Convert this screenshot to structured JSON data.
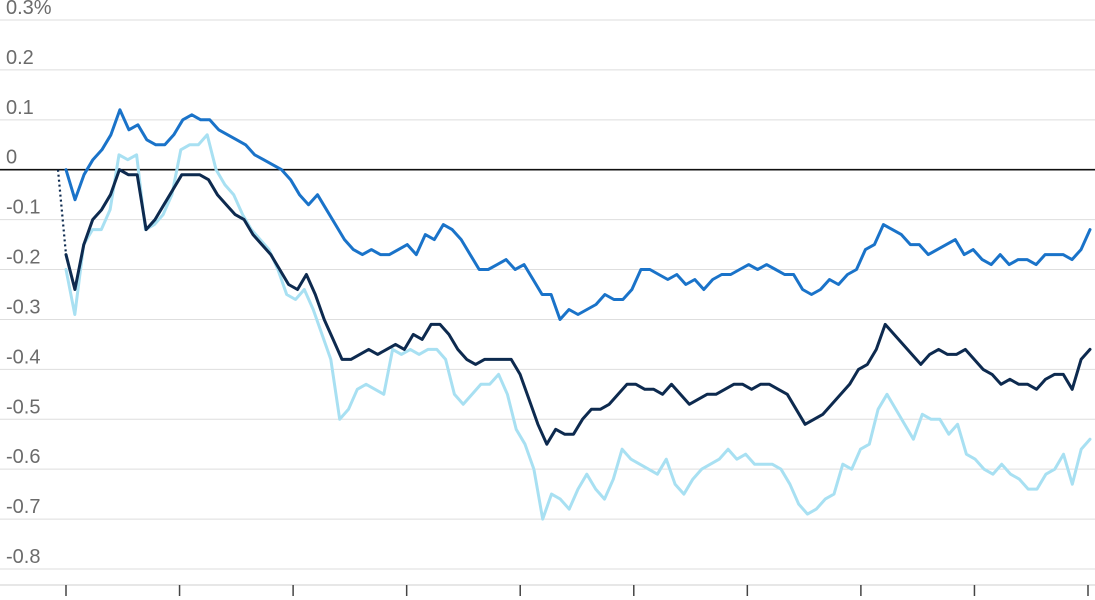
{
  "chart_data": {
    "type": "line",
    "title": "",
    "xlabel": "",
    "ylabel": "",
    "ylim": [
      -0.8,
      0.3
    ],
    "y_ticks": [
      {
        "value": 0.3,
        "label": "0.3%"
      },
      {
        "value": 0.2,
        "label": "0.2"
      },
      {
        "value": 0.1,
        "label": "0.1"
      },
      {
        "value": 0,
        "label": "0"
      },
      {
        "value": -0.1,
        "label": "-0.1"
      },
      {
        "value": -0.2,
        "label": "-0.2"
      },
      {
        "value": -0.3,
        "label": "-0.3"
      },
      {
        "value": -0.4,
        "label": "-0.4"
      },
      {
        "value": -0.5,
        "label": "-0.5"
      },
      {
        "value": -0.6,
        "label": "-0.6"
      },
      {
        "value": -0.7,
        "label": "-0.7"
      },
      {
        "value": -0.8,
        "label": "-0.8"
      }
    ],
    "grid": true,
    "zero_line": true,
    "x_tick_count": 10,
    "lead_in": {
      "style": "dotted",
      "from": 0,
      "to": -0.17,
      "color": "#0d2a4f"
    },
    "series": [
      {
        "color": "#1a73c9",
        "values": [
          0,
          -0.06,
          -0.01,
          0.02,
          0.04,
          0.07,
          0.12,
          0.08,
          0.09,
          0.06,
          0.05,
          0.05,
          0.07,
          0.1,
          0.11,
          0.1,
          0.1,
          0.08,
          0.07,
          0.06,
          0.05,
          0.03,
          0.02,
          0.01,
          0.0,
          -0.02,
          -0.05,
          -0.07,
          -0.05,
          -0.08,
          -0.11,
          -0.14,
          -0.16,
          -0.17,
          -0.16,
          -0.17,
          -0.17,
          -0.16,
          -0.15,
          -0.17,
          -0.13,
          -0.14,
          -0.11,
          -0.12,
          -0.14,
          -0.17,
          -0.2,
          -0.2,
          -0.19,
          -0.18,
          -0.2,
          -0.19,
          -0.22,
          -0.25,
          -0.25,
          -0.3,
          -0.28,
          -0.29,
          -0.28,
          -0.27,
          -0.25,
          -0.26,
          -0.26,
          -0.24,
          -0.2,
          -0.2,
          -0.21,
          -0.22,
          -0.21,
          -0.23,
          -0.22,
          -0.24,
          -0.22,
          -0.21,
          -0.21,
          -0.2,
          -0.19,
          -0.2,
          -0.19,
          -0.2,
          -0.21,
          -0.21,
          -0.24,
          -0.25,
          -0.24,
          -0.22,
          -0.23,
          -0.21,
          -0.2,
          -0.16,
          -0.15,
          -0.11,
          -0.12,
          -0.13,
          -0.15,
          -0.15,
          -0.17,
          -0.16,
          -0.15,
          -0.14,
          -0.17,
          -0.16,
          -0.18,
          -0.19,
          -0.17,
          -0.19,
          -0.18,
          -0.18,
          -0.19,
          -0.17,
          -0.17,
          -0.17,
          -0.18,
          -0.16,
          -0.12
        ]
      },
      {
        "color": "#0d2a4f",
        "values": [
          -0.17,
          -0.24,
          -0.15,
          -0.1,
          -0.08,
          -0.05,
          0.0,
          -0.01,
          -0.01,
          -0.12,
          -0.1,
          -0.07,
          -0.04,
          -0.01,
          -0.01,
          -0.01,
          -0.02,
          -0.05,
          -0.07,
          -0.09,
          -0.1,
          -0.13,
          -0.15,
          -0.17,
          -0.2,
          -0.23,
          -0.24,
          -0.21,
          -0.25,
          -0.3,
          -0.34,
          -0.38,
          -0.38,
          -0.37,
          -0.36,
          -0.37,
          -0.36,
          -0.35,
          -0.36,
          -0.33,
          -0.34,
          -0.31,
          -0.31,
          -0.33,
          -0.36,
          -0.38,
          -0.39,
          -0.38,
          -0.38,
          -0.38,
          -0.38,
          -0.41,
          -0.46,
          -0.51,
          -0.55,
          -0.52,
          -0.53,
          -0.53,
          -0.5,
          -0.48,
          -0.48,
          -0.47,
          -0.45,
          -0.43,
          -0.43,
          -0.44,
          -0.44,
          -0.45,
          -0.43,
          -0.45,
          -0.47,
          -0.46,
          -0.45,
          -0.45,
          -0.44,
          -0.43,
          -0.43,
          -0.44,
          -0.43,
          -0.43,
          -0.44,
          -0.45,
          -0.48,
          -0.51,
          -0.5,
          -0.49,
          -0.47,
          -0.45,
          -0.43,
          -0.4,
          -0.39,
          -0.36,
          -0.31,
          -0.33,
          -0.35,
          -0.37,
          -0.39,
          -0.37,
          -0.36,
          -0.37,
          -0.37,
          -0.36,
          -0.38,
          -0.4,
          -0.41,
          -0.43,
          -0.42,
          -0.43,
          -0.43,
          -0.44,
          -0.42,
          -0.41,
          -0.41,
          -0.44,
          -0.38,
          -0.36
        ]
      },
      {
        "color": "#a8e0f2",
        "values": [
          -0.2,
          -0.29,
          -0.15,
          -0.12,
          -0.12,
          -0.08,
          0.03,
          0.02,
          0.03,
          -0.12,
          -0.11,
          -0.09,
          -0.05,
          0.04,
          0.05,
          0.05,
          0.07,
          0.0,
          -0.03,
          -0.05,
          -0.09,
          -0.12,
          -0.14,
          -0.16,
          -0.2,
          -0.25,
          -0.26,
          -0.24,
          -0.28,
          -0.33,
          -0.38,
          -0.5,
          -0.48,
          -0.44,
          -0.43,
          -0.44,
          -0.45,
          -0.36,
          -0.37,
          -0.36,
          -0.37,
          -0.36,
          -0.36,
          -0.38,
          -0.45,
          -0.47,
          -0.45,
          -0.43,
          -0.43,
          -0.41,
          -0.45,
          -0.52,
          -0.55,
          -0.6,
          -0.7,
          -0.65,
          -0.66,
          -0.68,
          -0.64,
          -0.61,
          -0.64,
          -0.66,
          -0.62,
          -0.56,
          -0.58,
          -0.59,
          -0.6,
          -0.61,
          -0.58,
          -0.63,
          -0.65,
          -0.62,
          -0.6,
          -0.59,
          -0.58,
          -0.56,
          -0.58,
          -0.57,
          -0.59,
          -0.59,
          -0.59,
          -0.6,
          -0.63,
          -0.67,
          -0.69,
          -0.68,
          -0.66,
          -0.65,
          -0.59,
          -0.6,
          -0.56,
          -0.55,
          -0.48,
          -0.45,
          -0.48,
          -0.51,
          -0.54,
          -0.49,
          -0.5,
          -0.5,
          -0.53,
          -0.51,
          -0.57,
          -0.58,
          -0.6,
          -0.61,
          -0.59,
          -0.61,
          -0.62,
          -0.64,
          -0.64,
          -0.61,
          -0.6,
          -0.57,
          -0.63,
          -0.56,
          -0.54
        ]
      }
    ]
  }
}
